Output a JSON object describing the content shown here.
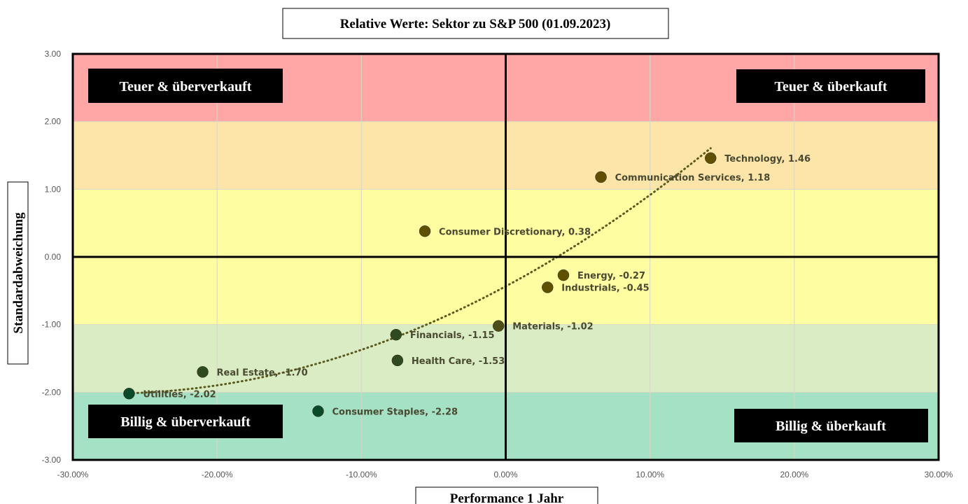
{
  "chart_data": {
    "type": "scatter",
    "title": "Relative Werte: Sektor zu S&P 500 (01.09.2023)",
    "xlabel": "Performance 1 Jahr",
    "ylabel": "Standardabweichung",
    "xlim": [
      -0.3,
      0.3
    ],
    "ylim": [
      -3,
      3
    ],
    "x_ticks": [
      "-30.00%",
      "-20.00%",
      "-10.00%",
      "0.00%",
      "10.00%",
      "20.00%",
      "30.00%"
    ],
    "y_ticks": [
      "3.00",
      "2.00",
      "1.00",
      "0.00",
      "-1.00",
      "-2.00",
      "-3.00"
    ],
    "grid": true,
    "trendline": "dotted",
    "bands": [
      {
        "y_from": 2,
        "y_to": 3,
        "color": "#fea7a6"
      },
      {
        "y_from": 1,
        "y_to": 2,
        "color": "#fde4a8"
      },
      {
        "y_from": -1,
        "y_to": 1,
        "color": "#fffda1"
      },
      {
        "y_from": -2,
        "y_to": -1,
        "color": "#d9ecc3"
      },
      {
        "y_from": -3,
        "y_to": -2,
        "color": "#a5e1c4"
      }
    ],
    "quadrant_labels": [
      {
        "text": "Teuer & überverkauft",
        "position": "top-left"
      },
      {
        "text": "Teuer & überkauft",
        "position": "top-right"
      },
      {
        "text": "Billig & überverkauft",
        "position": "bottom-left"
      },
      {
        "text": "Billig & überkauft",
        "position": "bottom-right"
      }
    ],
    "points": [
      {
        "label": "Technology, 1.46",
        "x": 0.142,
        "y": 1.46,
        "color": "#5f5000"
      },
      {
        "label": "Communication Services, 1.18",
        "x": 0.066,
        "y": 1.18,
        "color": "#5f5000"
      },
      {
        "label": "Consumer Discretionary, 0.38",
        "x": -0.056,
        "y": 0.38,
        "color": "#5f5000"
      },
      {
        "label": "Energy, -0.27",
        "x": 0.04,
        "y": -0.27,
        "color": "#5f5000"
      },
      {
        "label": "Industrials, -0.45",
        "x": 0.029,
        "y": -0.45,
        "color": "#5f5000"
      },
      {
        "label": "Materials, -1.02",
        "x": -0.005,
        "y": -1.02,
        "color": "#4d4d1a"
      },
      {
        "label": "Financials, -1.15",
        "x": -0.076,
        "y": -1.15,
        "color": "#2f4a20"
      },
      {
        "label": "Health Care, -1.53",
        "x": -0.075,
        "y": -1.53,
        "color": "#2f4a20"
      },
      {
        "label": "Real Estate, -1.70",
        "x": -0.21,
        "y": -1.7,
        "color": "#2f4a20"
      },
      {
        "label": "Utilities, -2.02",
        "x": -0.261,
        "y": -2.02,
        "color": "#0a4a2a"
      },
      {
        "label": "Consumer Staples, -2.28",
        "x": -0.13,
        "y": -2.28,
        "color": "#0a4a2a"
      }
    ]
  }
}
